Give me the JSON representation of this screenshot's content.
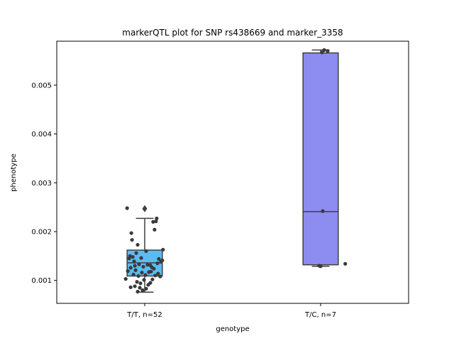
{
  "chart_data": {
    "type": "box",
    "title": "markerQTL plot for SNP rs438669 and marker_3358",
    "xlabel": "genotype",
    "ylabel": "phenotype",
    "ylim": [
      0.00053,
      0.0059
    ],
    "yticks": [
      0.001,
      0.002,
      0.003,
      0.004,
      0.005
    ],
    "ytick_labels": [
      "0.001",
      "0.002",
      "0.003",
      "0.004",
      "0.005"
    ],
    "grid": false,
    "legend": "none",
    "categories": [
      "T/T, n=52",
      "T/C, n=7"
    ],
    "boxes": [
      {
        "category": "T/T, n=52",
        "color": "#5bbcf0",
        "q1": 0.00109,
        "median": 0.00136,
        "q3": 0.00162,
        "whisker_low": 0.00076,
        "whisker_high": 0.00227,
        "outliers": [
          0.00247
        ],
        "points": [
          [
            -0.25,
            0.00248
          ],
          [
            0.17,
            0.00227
          ],
          [
            0.12,
            0.0022
          ],
          [
            0.16,
            0.00221
          ],
          [
            0.14,
            0.00204
          ],
          [
            -0.19,
            0.00197
          ],
          [
            -0.18,
            0.00183
          ],
          [
            -0.1,
            0.00173
          ],
          [
            0.02,
            0.0016
          ],
          [
            0.26,
            0.00163
          ],
          [
            -0.12,
            0.00156
          ],
          [
            -0.17,
            0.00148
          ],
          [
            -0.22,
            0.00145
          ],
          [
            -0.05,
            0.00146
          ],
          [
            0.2,
            0.00144
          ],
          [
            0.25,
            0.00141
          ],
          [
            0.23,
            0.00138
          ],
          [
            -0.15,
            0.00139
          ],
          [
            -0.08,
            0.00133
          ],
          [
            0.04,
            0.00132
          ],
          [
            0.08,
            0.00131
          ],
          [
            -0.14,
            0.0013
          ],
          [
            -0.02,
            0.00128
          ],
          [
            0.1,
            0.00127
          ],
          [
            -0.2,
            0.00126
          ],
          [
            0.13,
            0.00124
          ],
          [
            -0.13,
            0.00121
          ],
          [
            -0.24,
            0.00119
          ],
          [
            0.06,
            0.00117
          ],
          [
            -0.04,
            0.00116
          ],
          [
            0.19,
            0.00114
          ],
          [
            -0.16,
            0.00112
          ],
          [
            0.01,
            0.00111
          ],
          [
            0.15,
            0.0011
          ],
          [
            -0.09,
            0.00109
          ],
          [
            0.22,
            0.00108
          ],
          [
            -0.27,
            0.00103
          ],
          [
            0.11,
            0.00102
          ],
          [
            -0.01,
            0.00101
          ],
          [
            -0.11,
            0.00097
          ],
          [
            0.08,
            0.00095
          ],
          [
            -0.06,
            0.00094
          ],
          [
            0.05,
            0.00091
          ],
          [
            -0.14,
            0.00088
          ],
          [
            -0.2,
            0.00086
          ],
          [
            -0.07,
            0.00085
          ],
          [
            0.02,
            0.00083
          ],
          [
            -0.03,
            0.0008
          ],
          [
            -0.1,
            0.00077
          ],
          [
            0.09,
            0.00118
          ],
          [
            0.18,
            0.00135
          ],
          [
            -0.21,
            0.0015
          ]
        ]
      },
      {
        "category": "T/C, n=7",
        "color": "#8d8cf0",
        "q1": 0.00132,
        "median": 0.00241,
        "q3": 0.00566,
        "whisker_low": 0.00129,
        "whisker_high": 0.00572,
        "outliers": [],
        "points": [
          [
            0.05,
            0.00572
          ],
          [
            0.02,
            0.00567
          ],
          [
            0.1,
            0.0057
          ],
          [
            0.03,
            0.00242
          ],
          [
            0.0,
            0.00129
          ],
          [
            0.35,
            0.00134
          ],
          [
            -0.02,
            0.0013
          ]
        ]
      }
    ]
  }
}
